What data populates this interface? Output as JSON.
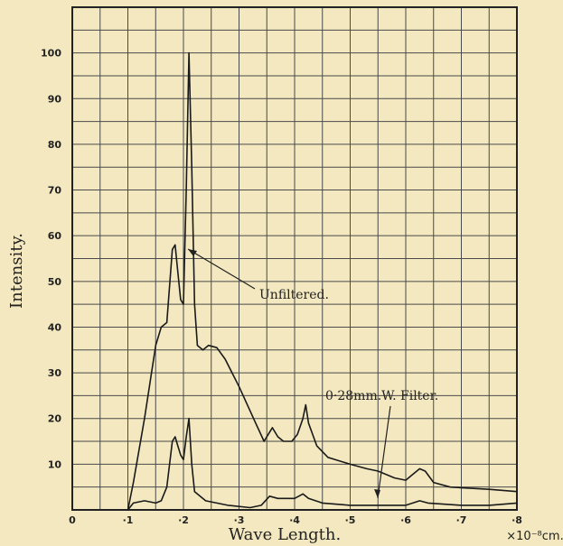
{
  "chart_data": {
    "type": "line",
    "xlabel": "Wave Length.",
    "ylabel": "Intensity.",
    "x_unit": "×10⁻⁸cm.",
    "xlim": [
      0,
      0.8
    ],
    "ylim": [
      0,
      110
    ],
    "x_ticks": [
      {
        "value": 0,
        "label": "0"
      },
      {
        "value": 0.1,
        "label": "·1"
      },
      {
        "value": 0.2,
        "label": "·2"
      },
      {
        "value": 0.3,
        "label": "·3"
      },
      {
        "value": 0.4,
        "label": "·4"
      },
      {
        "value": 0.5,
        "label": "·5"
      },
      {
        "value": 0.6,
        "label": "·6"
      },
      {
        "value": 0.7,
        "label": "·7"
      },
      {
        "value": 0.8,
        "label": "·8"
      }
    ],
    "y_ticks": [
      {
        "value": 10,
        "label": "10"
      },
      {
        "value": 20,
        "label": "20"
      },
      {
        "value": 30,
        "label": "30"
      },
      {
        "value": 40,
        "label": "40"
      },
      {
        "value": 50,
        "label": "50"
      },
      {
        "value": 60,
        "label": "60"
      },
      {
        "value": 70,
        "label": "70"
      },
      {
        "value": 80,
        "label": "80"
      },
      {
        "value": 90,
        "label": "90"
      },
      {
        "value": 100,
        "label": "100"
      }
    ],
    "grid": true,
    "series": [
      {
        "name": "Unfiltered.",
        "color": "#1a1a1a",
        "points": [
          [
            0.1,
            0
          ],
          [
            0.11,
            6
          ],
          [
            0.13,
            20
          ],
          [
            0.15,
            36
          ],
          [
            0.16,
            40
          ],
          [
            0.17,
            41
          ],
          [
            0.18,
            57
          ],
          [
            0.185,
            58
          ],
          [
            0.19,
            52
          ],
          [
            0.195,
            46
          ],
          [
            0.2,
            45
          ],
          [
            0.205,
            70
          ],
          [
            0.21,
            100
          ],
          [
            0.215,
            75
          ],
          [
            0.22,
            45
          ],
          [
            0.225,
            36
          ],
          [
            0.235,
            35
          ],
          [
            0.245,
            36
          ],
          [
            0.26,
            35.5
          ],
          [
            0.275,
            33
          ],
          [
            0.3,
            27
          ],
          [
            0.33,
            19
          ],
          [
            0.345,
            15
          ],
          [
            0.355,
            17
          ],
          [
            0.36,
            18
          ],
          [
            0.37,
            16
          ],
          [
            0.38,
            15
          ],
          [
            0.395,
            15
          ],
          [
            0.405,
            16.5
          ],
          [
            0.415,
            20
          ],
          [
            0.42,
            23
          ],
          [
            0.425,
            19
          ],
          [
            0.44,
            14
          ],
          [
            0.46,
            11.5
          ],
          [
            0.5,
            10
          ],
          [
            0.53,
            9
          ],
          [
            0.55,
            8.5
          ],
          [
            0.58,
            7
          ],
          [
            0.6,
            6.5
          ],
          [
            0.61,
            7.5
          ],
          [
            0.625,
            9
          ],
          [
            0.635,
            8.5
          ],
          [
            0.65,
            6
          ],
          [
            0.68,
            5
          ],
          [
            0.75,
            4.5
          ],
          [
            0.8,
            4
          ]
        ]
      },
      {
        "name": "0·28mm.W. Filter.",
        "color": "#1a1a1a",
        "points": [
          [
            0.1,
            0
          ],
          [
            0.11,
            1.5
          ],
          [
            0.13,
            2
          ],
          [
            0.15,
            1.5
          ],
          [
            0.16,
            2
          ],
          [
            0.17,
            5
          ],
          [
            0.18,
            15
          ],
          [
            0.185,
            16
          ],
          [
            0.19,
            14
          ],
          [
            0.195,
            12
          ],
          [
            0.2,
            11
          ],
          [
            0.205,
            16
          ],
          [
            0.21,
            20
          ],
          [
            0.215,
            10
          ],
          [
            0.22,
            4
          ],
          [
            0.24,
            2
          ],
          [
            0.28,
            1
          ],
          [
            0.32,
            0.5
          ],
          [
            0.34,
            1
          ],
          [
            0.355,
            3
          ],
          [
            0.37,
            2.5
          ],
          [
            0.4,
            2.5
          ],
          [
            0.415,
            3.5
          ],
          [
            0.425,
            2.5
          ],
          [
            0.45,
            1.5
          ],
          [
            0.5,
            1
          ],
          [
            0.55,
            1
          ],
          [
            0.6,
            1
          ],
          [
            0.625,
            2
          ],
          [
            0.64,
            1.5
          ],
          [
            0.7,
            1
          ],
          [
            0.75,
            1
          ],
          [
            0.8,
            1.5
          ]
        ]
      }
    ],
    "annotations": [
      {
        "text": "Unfiltered.",
        "series": 0
      },
      {
        "text": "0·28mm.W. Filter.",
        "series": 1
      }
    ]
  }
}
